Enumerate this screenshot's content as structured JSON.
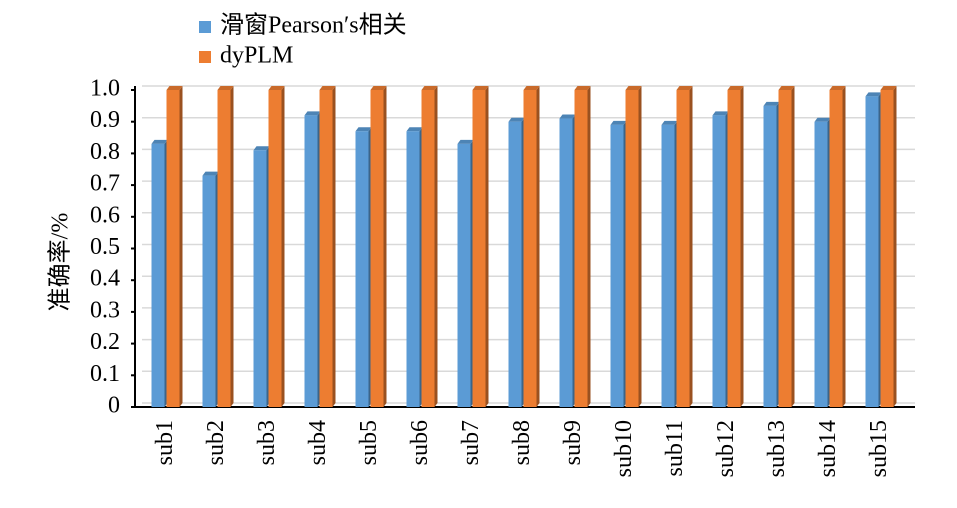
{
  "chart_data": {
    "type": "bar3d",
    "y_label": "准确率/%",
    "categories": [
      "sub1",
      "sub2",
      "sub3",
      "sub4",
      "sub5",
      "sub6",
      "sub7",
      "sub8",
      "sub9",
      "sub10",
      "sub11",
      "sub12",
      "sub13",
      "sub14",
      "sub15"
    ],
    "series": [
      {
        "name": "滑窗Pearson′s相关",
        "color": "#5b9bd5",
        "values": [
          0.83,
          0.73,
          0.81,
          0.92,
          0.87,
          0.87,
          0.83,
          0.9,
          0.91,
          0.89,
          0.89,
          0.92,
          0.95,
          0.9,
          0.98
        ]
      },
      {
        "name": "dyPLM",
        "color": "#ed7d31",
        "values": [
          1.0,
          1.0,
          1.0,
          1.0,
          1.0,
          1.0,
          1.0,
          1.0,
          1.0,
          1.0,
          1.0,
          1.0,
          1.0,
          1.0,
          1.0
        ]
      }
    ],
    "ylim": [
      0,
      1
    ],
    "yticks": [
      0,
      0.1,
      0.2,
      0.3,
      0.4,
      0.5,
      0.6,
      0.7,
      0.8,
      0.9,
      {
        "value": 1,
        "label": "1.0"
      }
    ],
    "grid": true
  }
}
